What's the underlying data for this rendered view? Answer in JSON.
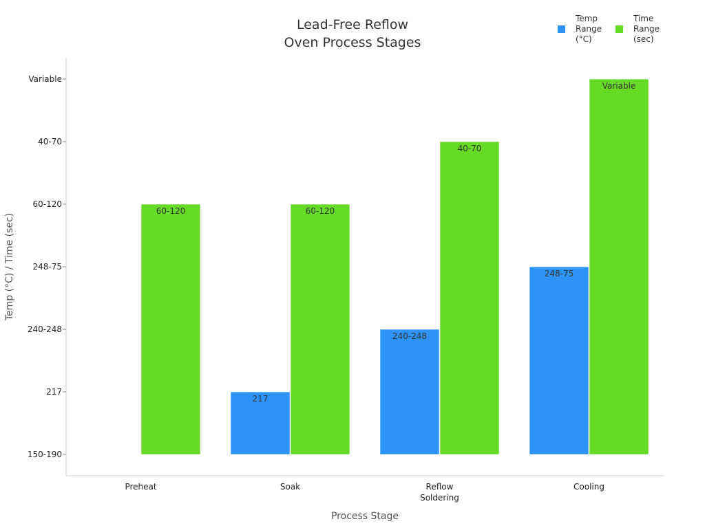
{
  "chart_data": {
    "type": "bar",
    "title": [
      "Lead-Free Reflow",
      "Oven Process Stages"
    ],
    "xlabel": "Process Stage",
    "ylabel": "Temp (°C) / Time (sec)",
    "categories": [
      [
        "Preheat"
      ],
      [
        "Soak"
      ],
      [
        "Reflow",
        "Soldering"
      ],
      [
        "Cooling"
      ]
    ],
    "y_categories": [
      "150-190",
      "217",
      "240-248",
      "248-75",
      "60-120",
      "40-70",
      "Variable"
    ],
    "series": [
      {
        "name": [
          "Temp",
          "Range",
          "(°C)"
        ],
        "color": "#2E93F6",
        "values": [
          "150-190",
          "217",
          "240-248",
          "248-75"
        ]
      },
      {
        "name": [
          "Time",
          "Range",
          "(sec)"
        ],
        "color": "#66DB26",
        "values": [
          "60-120",
          "60-120",
          "40-70",
          "Variable"
        ]
      }
    ],
    "grid": false,
    "legend_position": "top-right"
  }
}
